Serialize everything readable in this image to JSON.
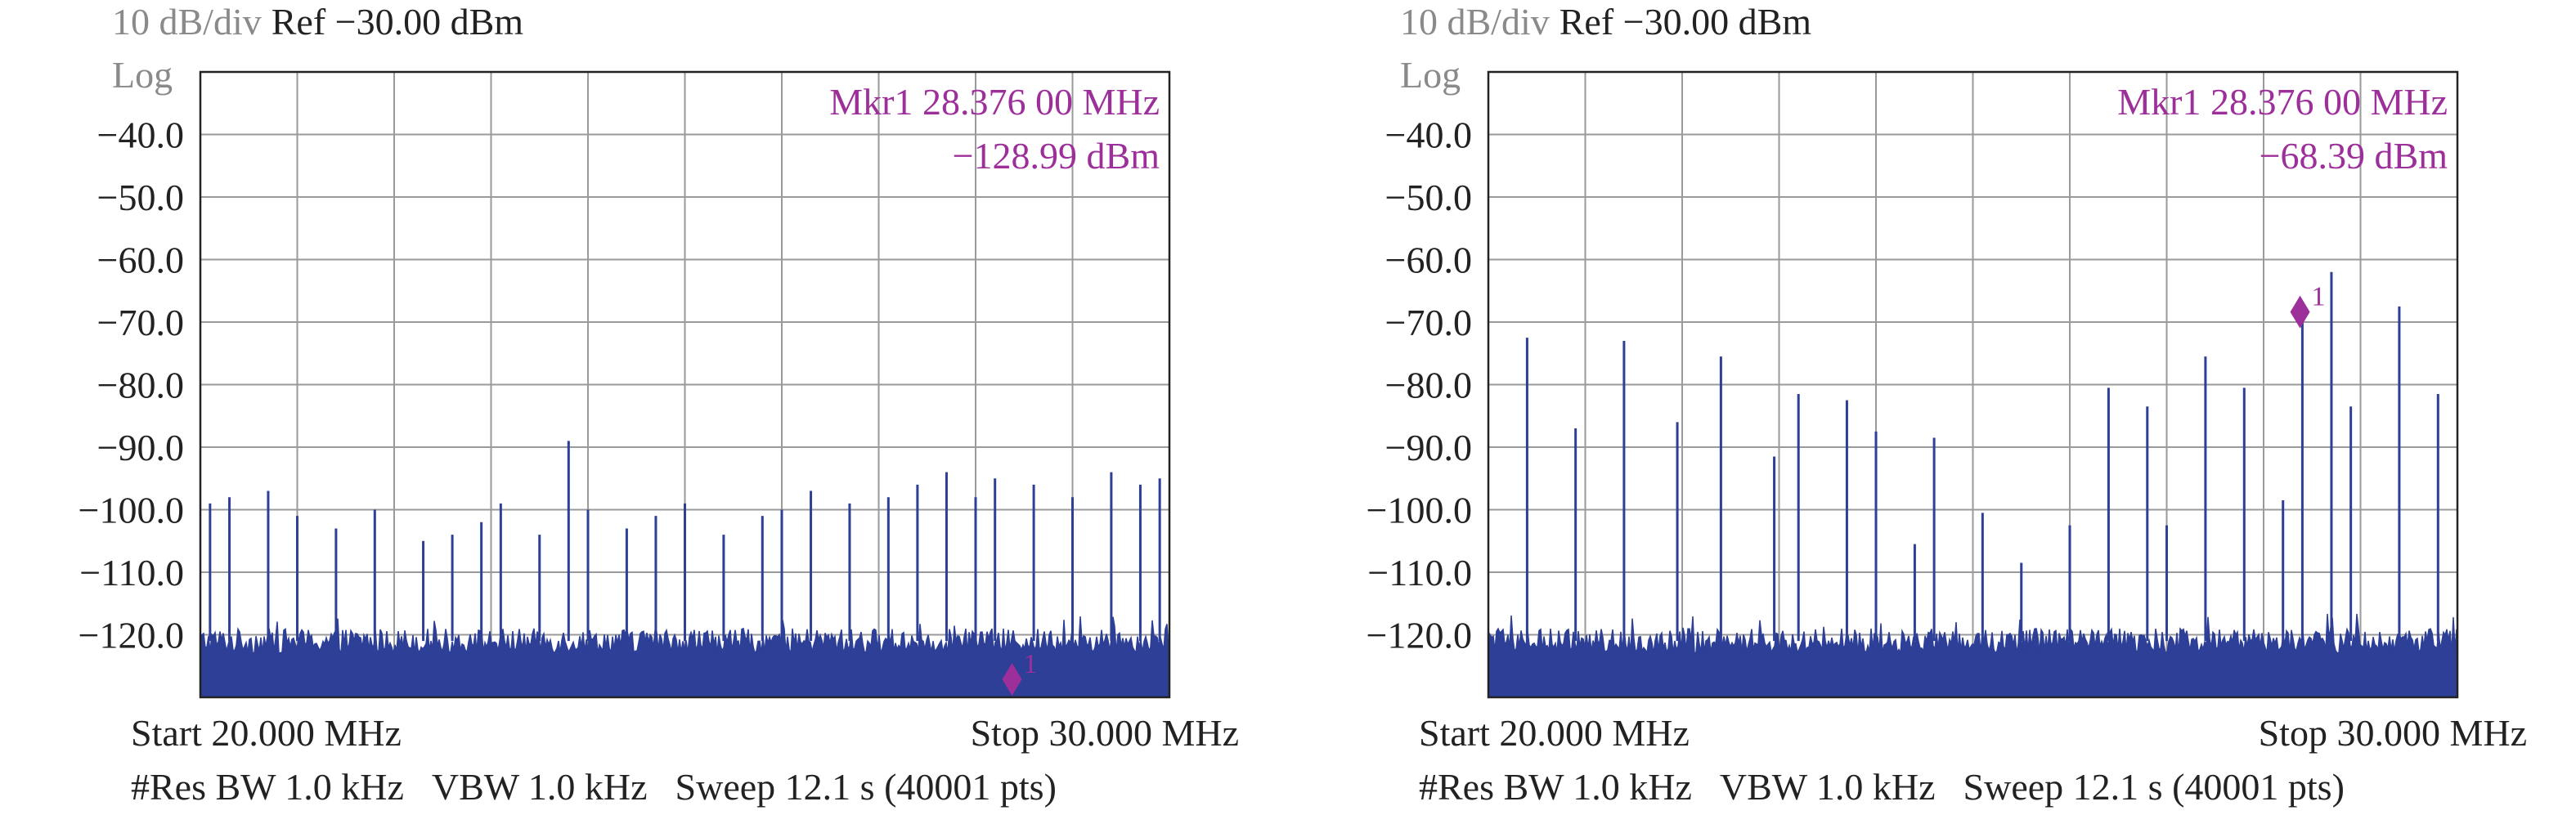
{
  "chart_data": [
    {
      "type": "line",
      "title": "",
      "header": {
        "scale": "10 dB/div",
        "ref": "Ref −30.00 dBm"
      },
      "ylabel": "Log",
      "xlabel": "",
      "yticks": [
        "−40.0",
        "−50.0",
        "−60.0",
        "−70.0",
        "−80.0",
        "−90.0",
        "−100.0",
        "−110.0",
        "−120.0"
      ],
      "ylim": [
        -130,
        -30
      ],
      "xlim": [
        20,
        30
      ],
      "x_unit": "MHz",
      "y_unit": "dBm",
      "grid": true,
      "noise_floor_dbm": -121,
      "trace_color": "#2d3f96",
      "series": [
        {
          "x": [
            20.1,
            20.3,
            20.7,
            21.0,
            21.4,
            21.8,
            22.3,
            22.6,
            22.9,
            23.1,
            23.5,
            23.8,
            24.0,
            24.4,
            24.7,
            25.0,
            25.4,
            25.8,
            26.0,
            26.3,
            26.7,
            27.1,
            27.4,
            27.7,
            28.0,
            28.2,
            28.6,
            29.0,
            29.4,
            29.7,
            29.9
          ],
          "y": [
            -99,
            -98,
            -97,
            -101,
            -103,
            -100,
            -105,
            -104,
            -102,
            -99,
            -104,
            -89,
            -100,
            -103,
            -101,
            -99,
            -104,
            -101,
            -100,
            -97,
            -99,
            -98,
            -96,
            -94,
            -98,
            -95,
            -96,
            -98,
            -94,
            -96,
            -95
          ]
        }
      ],
      "marker": {
        "label": "1",
        "x": 28.376,
        "y": -128.99,
        "color": "#9c2f9a"
      },
      "marker_readout": {
        "freq": "Mkr1 28.376 00 MHz",
        "amp": "−128.99 dBm"
      },
      "footer": {
        "start": "Start 20.000 MHz",
        "stop": "Stop 30.000 MHz",
        "res_bw": "#Res BW 1.0 kHz",
        "vbw": "VBW 1.0 kHz",
        "sweep": "Sweep 12.1 s (40001 pts)"
      }
    },
    {
      "type": "line",
      "title": "",
      "header": {
        "scale": "10 dB/div",
        "ref": "Ref −30.00 dBm"
      },
      "ylabel": "Log",
      "xlabel": "",
      "yticks": [
        "−40.0",
        "−50.0",
        "−60.0",
        "−70.0",
        "−80.0",
        "−90.0",
        "−100.0",
        "−110.0",
        "−120.0"
      ],
      "ylim": [
        -130,
        -30
      ],
      "xlim": [
        20,
        30
      ],
      "x_unit": "MHz",
      "y_unit": "dBm",
      "grid": true,
      "noise_floor_dbm": -121,
      "trace_color": "#2d3f96",
      "series": [
        {
          "x": [
            20.4,
            20.9,
            21.4,
            21.95,
            22.4,
            22.95,
            23.2,
            23.7,
            24.0,
            24.4,
            24.6,
            25.1,
            25.5,
            26.0,
            26.4,
            26.8,
            27.0,
            27.4,
            27.8,
            28.2,
            28.4,
            28.7,
            28.9,
            29.4,
            29.8
          ],
          "y": [
            -72.5,
            -87,
            -73,
            -86,
            -75.5,
            -91.5,
            -81.5,
            -82.5,
            -87.5,
            -105.5,
            -88.5,
            -100.5,
            -108.5,
            -102.5,
            -80.5,
            -83.5,
            -102.5,
            -75.5,
            -80.5,
            -98.5,
            -68.5,
            -62,
            -83.5,
            -67.5,
            -81.5
          ]
        }
      ],
      "marker": {
        "label": "1",
        "x": 28.376,
        "y": -68.39,
        "color": "#9c2f9a"
      },
      "marker_readout": {
        "freq": "Mkr1 28.376 00 MHz",
        "amp": "−68.39 dBm"
      },
      "footer": {
        "start": "Start 20.000 MHz",
        "stop": "Stop 30.000 MHz",
        "res_bw": "#Res BW 1.0 kHz",
        "vbw": "VBW 1.0 kHz",
        "sweep": "Sweep 12.1 s (40001 pts)"
      }
    }
  ]
}
